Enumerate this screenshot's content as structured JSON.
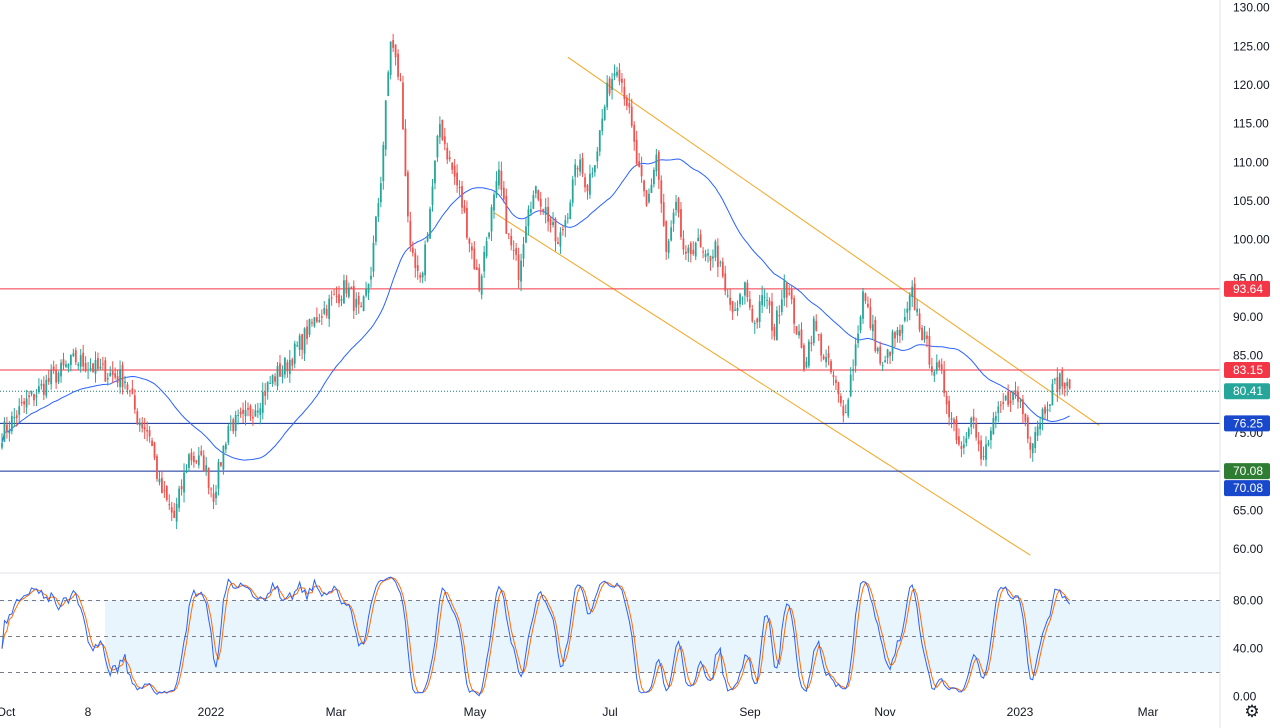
{
  "chart_data": [
    {
      "type": "candlestick",
      "title": "",
      "x_tick_labels": [
        "Oct",
        "8",
        "2022",
        "Mar",
        "May",
        "Jul",
        "Sep",
        "Nov",
        "2023",
        "Mar"
      ],
      "y_tick_labels": [
        "130.00",
        "125.00",
        "120.00",
        "115.00",
        "110.00",
        "105.00",
        "100.00",
        "95.00",
        "90.00",
        "85.00",
        "80.00",
        "75.00",
        "70.00",
        "65.00",
        "60.00"
      ],
      "ylim": [
        56.9,
        131.0
      ],
      "grid": false,
      "colors": {
        "up": "#26a69a",
        "down": "#ef5350",
        "moving_average": "#2962ff",
        "channel": "#f5a623"
      },
      "approx_close_path": [
        [
          0,
          75
        ],
        [
          10,
          79
        ],
        [
          20,
          82
        ],
        [
          30,
          84.5
        ],
        [
          40,
          83
        ],
        [
          50,
          82
        ],
        [
          55,
          77
        ],
        [
          60,
          75
        ],
        [
          64,
          68
        ],
        [
          70,
          64
        ],
        [
          76,
          72
        ],
        [
          82,
          71
        ],
        [
          86,
          67
        ],
        [
          92,
          76
        ],
        [
          98,
          76.5
        ],
        [
          104,
          79
        ],
        [
          110,
          82
        ],
        [
          116,
          84
        ],
        [
          122,
          87
        ],
        [
          128,
          90
        ],
        [
          134,
          92
        ],
        [
          140,
          94
        ],
        [
          146,
          90
        ],
        [
          150,
          96
        ],
        [
          154,
          108
        ],
        [
          158,
          126
        ],
        [
          162,
          120
        ],
        [
          166,
          98
        ],
        [
          170,
          94
        ],
        [
          174,
          104
        ],
        [
          178,
          115
        ],
        [
          182,
          110
        ],
        [
          186,
          106
        ],
        [
          190,
          100
        ],
        [
          194,
          94
        ],
        [
          198,
          102
        ],
        [
          202,
          108
        ],
        [
          206,
          100
        ],
        [
          210,
          96
        ],
        [
          214,
          105
        ],
        [
          218,
          106
        ],
        [
          222,
          103
        ],
        [
          226,
          99
        ],
        [
          230,
          104
        ],
        [
          234,
          110
        ],
        [
          238,
          107
        ],
        [
          242,
          112
        ],
        [
          246,
          119
        ],
        [
          250,
          123
        ],
        [
          254,
          118
        ],
        [
          258,
          110
        ],
        [
          262,
          104
        ],
        [
          266,
          111
        ],
        [
          270,
          98
        ],
        [
          274,
          104
        ],
        [
          278,
          97
        ],
        [
          282,
          100
        ],
        [
          286,
          97
        ],
        [
          290,
          99
        ],
        [
          294,
          93
        ],
        [
          298,
          90
        ],
        [
          302,
          94
        ],
        [
          306,
          89
        ],
        [
          310,
          93
        ],
        [
          314,
          88
        ],
        [
          318,
          95
        ],
        [
          322,
          90
        ],
        [
          326,
          84
        ],
        [
          330,
          89
        ],
        [
          334,
          85
        ],
        [
          338,
          82
        ],
        [
          342,
          77
        ],
        [
          346,
          84
        ],
        [
          350,
          93
        ],
        [
          354,
          88
        ],
        [
          358,
          83
        ],
        [
          362,
          87
        ],
        [
          366,
          88
        ],
        [
          370,
          93
        ],
        [
          374,
          88
        ],
        [
          378,
          84
        ],
        [
          382,
          82
        ],
        [
          386,
          77
        ],
        [
          390,
          73
        ],
        [
          394,
          78
        ],
        [
          398,
          71
        ],
        [
          402,
          75
        ],
        [
          406,
          78
        ],
        [
          410,
          80
        ],
        [
          414,
          79
        ],
        [
          418,
          74
        ],
        [
          422,
          77
        ],
        [
          426,
          80
        ],
        [
          430,
          82
        ],
        [
          434,
          80
        ]
      ],
      "horizontal_levels": [
        {
          "value": 93.64,
          "color": "#f23645",
          "label": "93.64",
          "tag_color": "#f23645"
        },
        {
          "value": 83.15,
          "color": "#f23645",
          "label": "83.15",
          "tag_color": "#f23645"
        },
        {
          "value": 80.41,
          "color": "#1b7f73",
          "label": "80.41",
          "tag_color": "#26a69a",
          "style": "dotted"
        },
        {
          "value": 76.25,
          "color": "#0c2d9c",
          "label": "76.25",
          "tag_color": "#1848cc"
        },
        {
          "value": 70.08,
          "color": "#0c2d9c",
          "label": "70.08",
          "tag_color": "#2e7d32",
          "label2": "70.08",
          "tag_color2": "#1848cc"
        }
      ]
    },
    {
      "type": "line",
      "title": "",
      "y_tick_labels": [
        "80.00",
        "40.00",
        "0.00"
      ],
      "ylim": [
        -3,
        103
      ],
      "band": [
        20,
        80
      ],
      "series_colors": {
        "k": "#2962ff",
        "d": "#ff6d00"
      }
    }
  ],
  "settings": {
    "icon": "gear-icon",
    "glyph": "⚙"
  }
}
